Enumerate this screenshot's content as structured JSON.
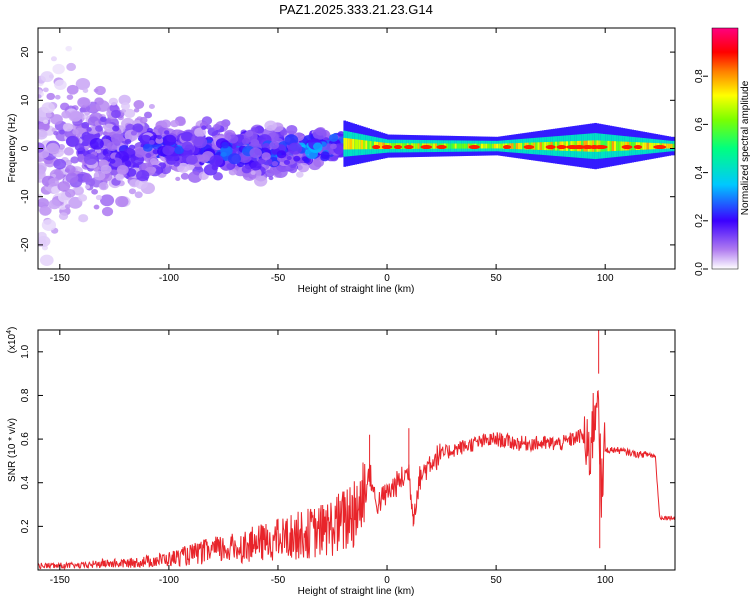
{
  "chart_data": [
    {
      "type": "heatmap",
      "title": "PAZ1.2025.333.21.23.G14",
      "xlabel": "Height of straight line (km)",
      "ylabel": "Frequency (Hz)",
      "xlim": [
        -160,
        132
      ],
      "ylim": [
        -25,
        25
      ],
      "x_ticks": [
        "-150",
        "-100",
        "-50",
        "0",
        "50",
        "100"
      ],
      "y_ticks": [
        "20",
        "10",
        "0",
        "-10",
        "-20"
      ],
      "colorbar": {
        "label": "Normalized spectral amplitude",
        "range": [
          0.0,
          1.0
        ],
        "ticks": [
          "0.0",
          "0.2",
          "0.4",
          "0.6",
          "0.8"
        ],
        "colormap": "rainbow: white-violet-blue-cyan-green-yellow-orange-red-magenta"
      },
      "description_points": [
        {
          "height_km": -140,
          "freq_center_hz": 0,
          "spread_hz": 22,
          "amplitude": 0.15
        },
        {
          "height_km": -100,
          "freq_center_hz": 0,
          "spread_hz": 8,
          "amplitude": 0.25
        },
        {
          "height_km": -50,
          "freq_center_hz": -1,
          "spread_hz": 7,
          "amplitude": 0.3
        },
        {
          "height_km": -20,
          "freq_center_hz": 1,
          "spread_hz": 3,
          "amplitude": 0.4
        },
        {
          "height_km": 0,
          "freq_center_hz": 0.5,
          "spread_hz": 1.5,
          "amplitude": 0.65
        },
        {
          "height_km": 50,
          "freq_center_hz": 0.5,
          "spread_hz": 1.2,
          "amplitude": 0.7
        },
        {
          "height_km": 95,
          "freq_center_hz": 0.5,
          "spread_hz": 3,
          "amplitude": 0.75
        },
        {
          "height_km": 130,
          "freq_center_hz": 0.5,
          "spread_hz": 1.2,
          "amplitude": 0.7
        }
      ]
    },
    {
      "type": "line",
      "xlabel": "Height of straight line (km)",
      "ylabel": "SNR (10 * v/v)",
      "y_multiplier": "(x10",
      "y_multiplier_exp": "4",
      "y_multiplier_close": ")",
      "xlim": [
        -160,
        132
      ],
      "ylim": [
        0,
        1.1
      ],
      "x_ticks": [
        "-150",
        "-100",
        "-50",
        "0",
        "50",
        "100"
      ],
      "y_ticks": [
        "0.2",
        "0.4",
        "0.6",
        "0.8",
        "1.0"
      ],
      "color": "#e8242a",
      "series": [
        {
          "x": [
            -160,
            -150,
            -140,
            -130,
            -120,
            -110,
            -100,
            -90,
            -80,
            -70,
            -60,
            -50,
            -40,
            -30,
            -20,
            -15,
            -10,
            -8,
            -5,
            0,
            5,
            10,
            12,
            15,
            20,
            25,
            30,
            40,
            50,
            60,
            70,
            80,
            85,
            90,
            92,
            95,
            97,
            98,
            100,
            105,
            110,
            115,
            120,
            123,
            125,
            132
          ],
          "y": [
            0.02,
            0.02,
            0.02,
            0.03,
            0.03,
            0.04,
            0.05,
            0.07,
            0.09,
            0.1,
            0.12,
            0.14,
            0.16,
            0.18,
            0.22,
            0.28,
            0.35,
            0.45,
            0.3,
            0.35,
            0.4,
            0.45,
            0.25,
            0.42,
            0.5,
            0.53,
            0.55,
            0.58,
            0.6,
            0.58,
            0.58,
            0.58,
            0.6,
            0.62,
            0.5,
            0.7,
            0.9,
            0.3,
            0.55,
            0.55,
            0.54,
            0.53,
            0.53,
            0.52,
            0.24,
            0.24
          ]
        }
      ]
    }
  ]
}
